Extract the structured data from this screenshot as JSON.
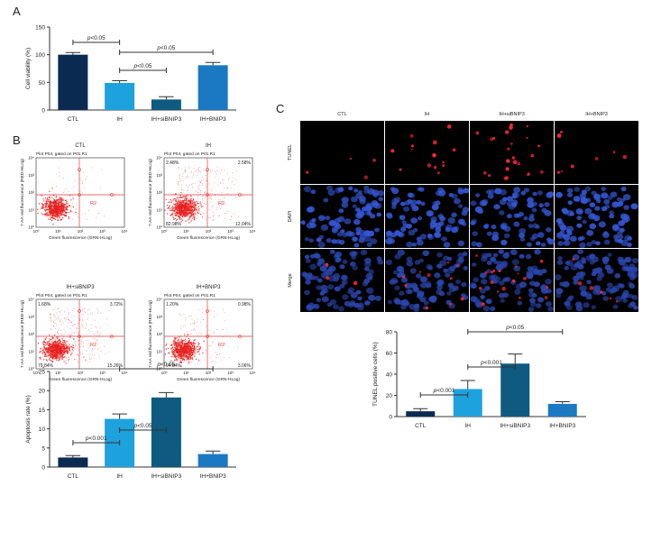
{
  "panels": {
    "A": "A",
    "B": "B",
    "C": "C"
  },
  "colors": {
    "CTL": "#0b2a52",
    "IH": "#1ea2de",
    "IH+siBNIP3": "#0e5a80",
    "IH+BNIP3": "#1b78c3",
    "dot": "#e8211e",
    "gate_line": "#e23a3a",
    "nuclei": "#3557d6"
  },
  "chart_data": [
    {
      "id": "cell-viability",
      "type": "bar",
      "categories": [
        "CTL",
        "IH",
        "IH+siBNIP3",
        "IH+BNIP3"
      ],
      "values": [
        100,
        49,
        19,
        81
      ],
      "errors": [
        4,
        4,
        5,
        5
      ],
      "ylabel": "Cell viability (%)",
      "ylim": [
        0,
        150
      ],
      "yticks": [
        0,
        50,
        100,
        150
      ],
      "significance": [
        {
          "from": 0,
          "to": 1,
          "label": "p<0.05"
        },
        {
          "from": 1,
          "to": 3,
          "label": "p<0.05"
        },
        {
          "from": 1,
          "to": 2,
          "label": "p<0.05"
        }
      ]
    },
    {
      "id": "apoptosis-rate",
      "type": "bar",
      "categories": [
        "CTL",
        "IH",
        "IH+siBNIP3",
        "IH+BNIP3"
      ],
      "values": [
        2.5,
        12.6,
        18.2,
        3.4
      ],
      "errors": [
        0.5,
        1.3,
        1.3,
        0.8
      ],
      "ylabel": "Apoptosis rate (%)",
      "ylim": [
        0,
        25
      ],
      "yticks": [
        0,
        5,
        10,
        15,
        20,
        25
      ],
      "significance": [
        {
          "from": 0,
          "to": 1,
          "label": "p<0.001"
        },
        {
          "from": 1,
          "to": 3,
          "label": "p<0.05"
        },
        {
          "from": 1,
          "to": 2,
          "label": "p<0.05"
        }
      ]
    },
    {
      "id": "tunel-positive",
      "type": "bar",
      "categories": [
        "CTL",
        "IH",
        "IH+siBNIP3",
        "IH+BNIP3"
      ],
      "values": [
        5,
        26,
        50,
        12
      ],
      "errors": [
        2.5,
        8,
        9,
        2
      ],
      "ylabel": "TUNEL positive cells (%)",
      "ylim": [
        0,
        80
      ],
      "yticks": [
        0,
        20,
        40,
        60,
        80
      ],
      "significance": [
        {
          "from": 0,
          "to": 1,
          "label": "p<0.001"
        },
        {
          "from": 1,
          "to": 3,
          "label": "p<0.05"
        },
        {
          "from": 1,
          "to": 2,
          "label": "p<0.001"
        }
      ]
    }
  ],
  "flow": {
    "plots": [
      {
        "group": "CTL",
        "subtitle": "Plot P04, gated on P01.R1",
        "ul": "",
        "ur": "",
        "ll": "",
        "lr": "",
        "gate": "R2",
        "density": 0
      },
      {
        "group": "IH",
        "subtitle": "Plot P04, gated on P01.R1",
        "ul": "2.48%",
        "ur": "2.58%",
        "ll": "82.98%",
        "lr": "12.04%",
        "gate": "R2",
        "density": 1
      },
      {
        "group": "IH+siBNIP3",
        "subtitle": "Plot P04, gated on P01.R1",
        "ul": "1.68%",
        "ur": "3.72%",
        "ll": "79.84%",
        "lr": "15.26%",
        "gate": "R2",
        "density": 2
      },
      {
        "group": "IH+BNIP3",
        "subtitle": "Plot P04, gated on P01.R1",
        "ul": "1.20%",
        "ur": "0.98%",
        "ll": "94.84%",
        "lr": "3.06%",
        "gate": "R2",
        "density": 3
      }
    ],
    "xlabel": "Green fluorescence (GRN-HLog)",
    "ylabel": "7-AA red fluorescence (RED-HLog)",
    "ticks": [
      "10⁰",
      "10¹",
      "10²",
      "10³",
      "10⁴"
    ]
  },
  "microscopy": {
    "columns": [
      "CTL",
      "IH",
      "IH+siBNIP3",
      "IH+BNIP3"
    ],
    "rows": [
      "TUNEL",
      "DAPI",
      "Merge"
    ]
  }
}
